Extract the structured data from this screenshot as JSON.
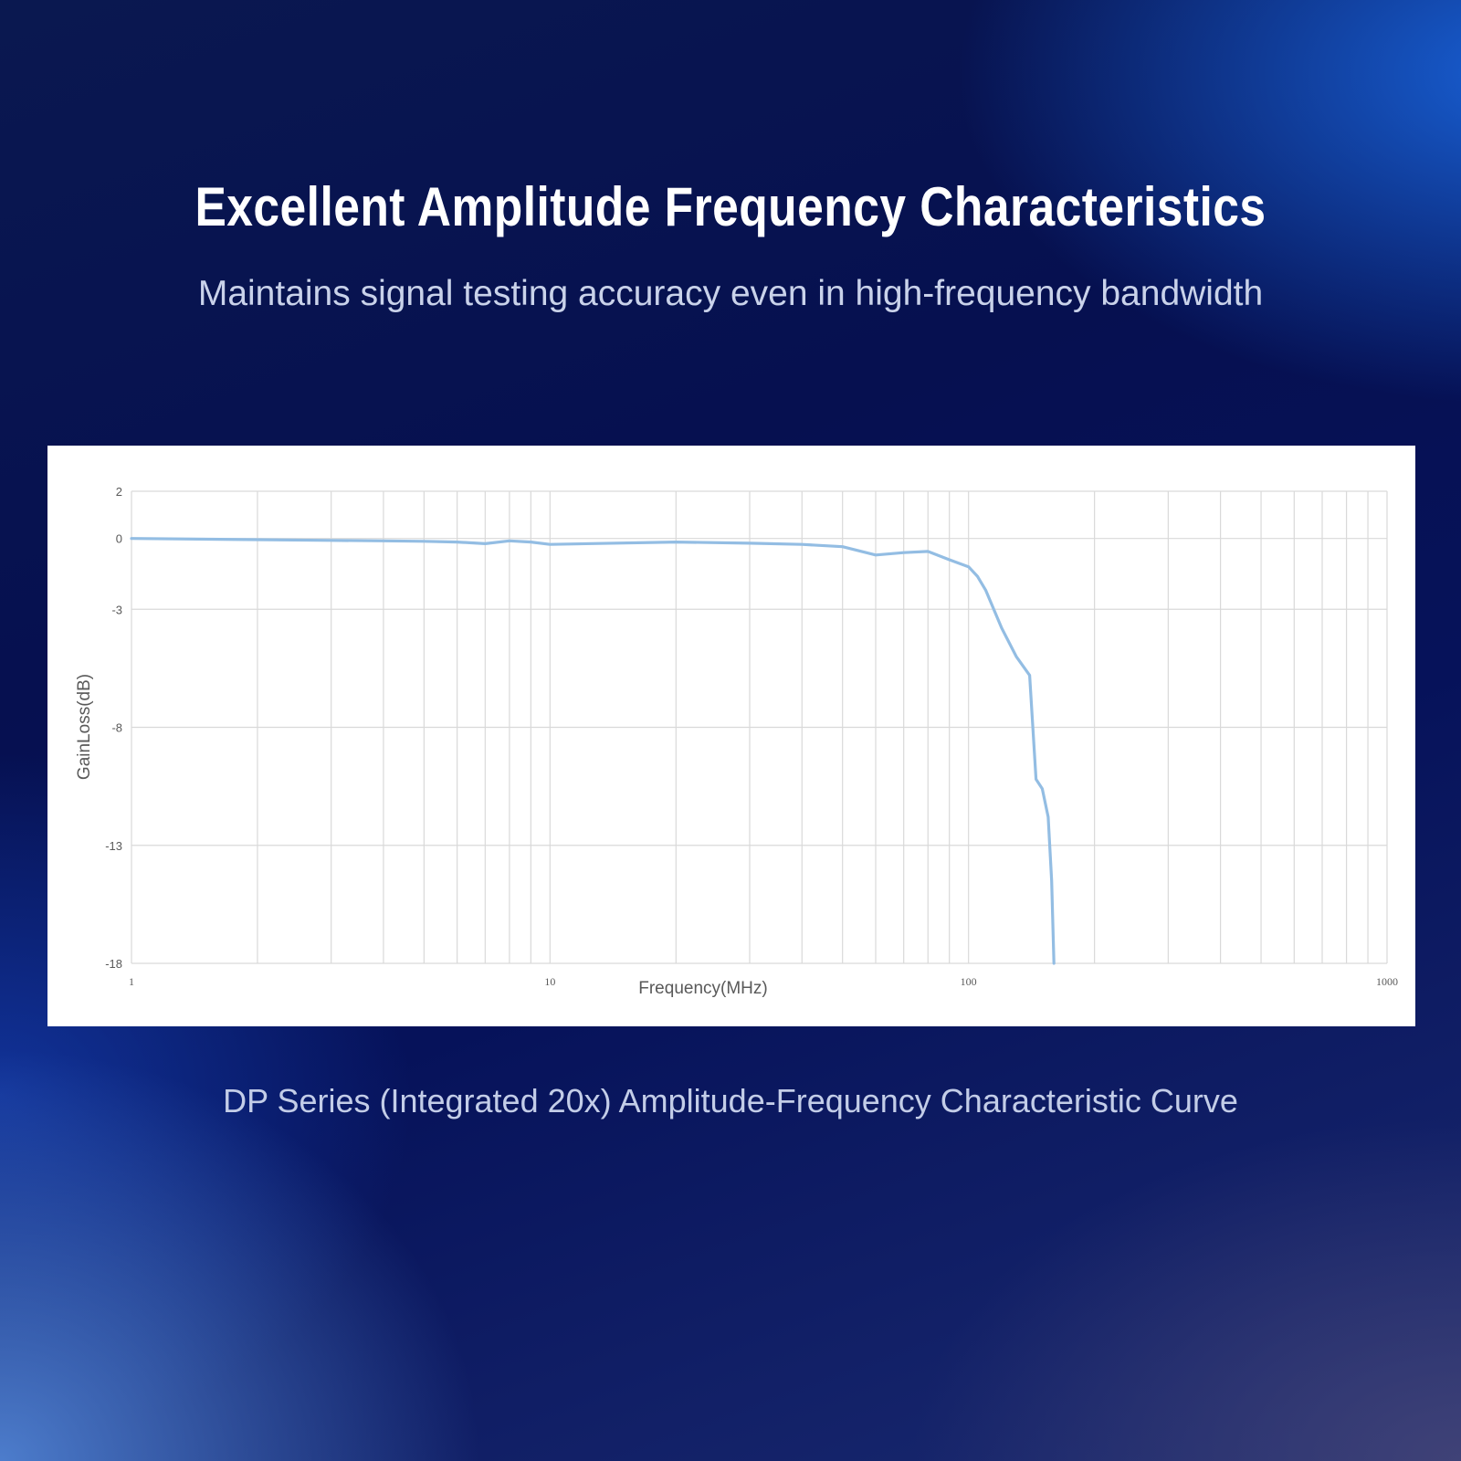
{
  "header": {
    "title": "Excellent Amplitude Frequency Characteristics",
    "subtitle": "Maintains signal testing accuracy even in high-frequency bandwidth"
  },
  "caption": "DP Series (Integrated 20x) Amplitude-Frequency Characteristic Curve",
  "colors": {
    "curve": "#93bde3",
    "grid": "#d9d9d9",
    "background_top": "#061050",
    "chart_bg": "#ffffff"
  },
  "chart_data": {
    "type": "line",
    "title": "",
    "xlabel": "Frequency(MHz)",
    "ylabel": "GainLoss(dB)",
    "xscale": "log",
    "xlim": [
      1,
      1000
    ],
    "ylim": [
      -18,
      2
    ],
    "x_ticks": [
      "1",
      "10",
      "100",
      "1000"
    ],
    "y_ticks": [
      "2",
      "0",
      "-3",
      "-8",
      "-13",
      "-18"
    ],
    "y_tick_values": [
      2,
      0,
      -3,
      -8,
      -13,
      -18
    ],
    "grid": true,
    "legend": "none",
    "series": [
      {
        "x": [
          1,
          2,
          3,
          4,
          5,
          6,
          7,
          8,
          9,
          10,
          20,
          30,
          40,
          50,
          60,
          70,
          80,
          90,
          100,
          105,
          110,
          120,
          130,
          140,
          145,
          150,
          155,
          158,
          160
        ],
        "y": [
          0,
          -0.05,
          -0.08,
          -0.1,
          -0.12,
          -0.15,
          -0.22,
          -0.1,
          -0.15,
          -0.25,
          -0.15,
          -0.2,
          -0.25,
          -0.35,
          -0.7,
          -0.6,
          -0.55,
          -0.9,
          -1.2,
          -1.6,
          -2.2,
          -3.8,
          -5.0,
          -5.8,
          -10.2,
          -10.6,
          -11.8,
          -14.5,
          -18
        ]
      }
    ]
  }
}
